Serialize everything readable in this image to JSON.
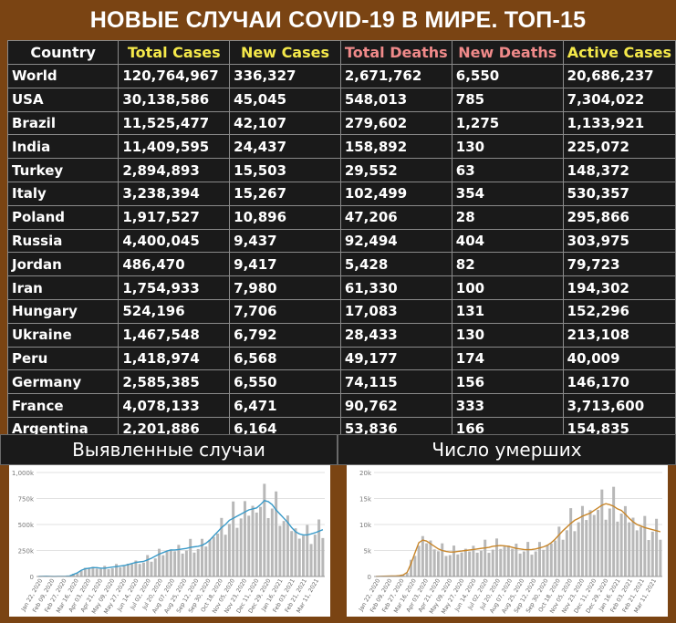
{
  "title": "НОВЫЕ СЛУЧАИ COVID-19 В МИРЕ. ТОП-15",
  "table": {
    "headers": [
      "Country",
      "Total Cases",
      "New Cases",
      "Total Deaths",
      "New Deaths",
      "Active Cases"
    ],
    "header_colors": [
      "#ffffff",
      "#f5e94a",
      "#f5e94a",
      "#f08a8a",
      "#f08a8a",
      "#f5e94a"
    ],
    "rows": [
      [
        "World",
        "120,764,967",
        "336,327",
        "2,671,762",
        "6,550",
        "20,686,237"
      ],
      [
        "USA",
        "30,138,586",
        "45,045",
        "548,013",
        "785",
        "7,304,022"
      ],
      [
        "Brazil",
        "11,525,477",
        "42,107",
        "279,602",
        "1,275",
        "1,133,921"
      ],
      [
        "India",
        "11,409,595",
        "24,437",
        "158,892",
        "130",
        "225,072"
      ],
      [
        "Turkey",
        "2,894,893",
        "15,503",
        "29,552",
        "63",
        "148,372"
      ],
      [
        "Italy",
        "3,238,394",
        "15,267",
        "102,499",
        "354",
        "530,357"
      ],
      [
        "Poland",
        "1,917,527",
        "10,896",
        "47,206",
        "28",
        "295,866"
      ],
      [
        "Russia",
        "4,400,045",
        "9,437",
        "92,494",
        "404",
        "303,975"
      ],
      [
        "Jordan",
        "486,470",
        "9,417",
        "5,428",
        "82",
        "79,723"
      ],
      [
        "Iran",
        "1,754,933",
        "7,980",
        "61,330",
        "100",
        "194,302"
      ],
      [
        "Hungary",
        "524,196",
        "7,706",
        "17,083",
        "131",
        "152,296"
      ],
      [
        "Ukraine",
        "1,467,548",
        "6,792",
        "28,433",
        "130",
        "213,108"
      ],
      [
        "Peru",
        "1,418,974",
        "6,568",
        "49,177",
        "174",
        "40,009"
      ],
      [
        "Germany",
        "2,585,385",
        "6,550",
        "74,115",
        "156",
        "146,170"
      ],
      [
        "France",
        "4,078,133",
        "6,471",
        "90,762",
        "333",
        "3,713,600"
      ],
      [
        "Argentina",
        "2,201,886",
        "6,164",
        "53,836",
        "166",
        "154,835"
      ]
    ]
  },
  "panels": {
    "cases_title": "Выявленные случаи",
    "deaths_title": "Число умерших"
  },
  "chart_data": [
    {
      "type": "bar",
      "title": "Выявленные случаи",
      "xlabel": "",
      "ylabel": "",
      "ylim": [
        0,
        1000000
      ],
      "y_ticks": [
        "0",
        "250k",
        "500k",
        "750k",
        "1,000k"
      ],
      "y_tick_values": [
        0,
        250000,
        500000,
        750000,
        1000000
      ],
      "x_ticks": [
        "Jan 22, 2020",
        "Feb 09, 2020",
        "Feb 27, 2020",
        "Mar 16, 2020",
        "Apr 03, 2020",
        "Apr 21, 2020",
        "May 09, 2020",
        "May 27, 2020",
        "Jun 14, 2020",
        "Jul 02, 2020",
        "Jul 20, 2020",
        "Aug 07, 2020",
        "Aug 25, 2020",
        "Sep 12, 2020",
        "Sep 30, 2020",
        "Oct 18, 2020",
        "Nov 05, 2020",
        "Nov 23, 2020",
        "Dec 11, 2020",
        "Dec 29, 2020",
        "Jan 16, 2021",
        "Feb 03, 2021",
        "Feb 21, 2021",
        "Mar 11, 2021"
      ],
      "bar_color": "#b8b8b8",
      "line_color": "#3a9ac8",
      "series": [
        {
          "name": "",
          "values": [
            500,
            2000,
            2500,
            2000,
            1000,
            1500,
            2000,
            3000,
            5000,
            20000,
            35000,
            60000,
            75000,
            80000,
            85000,
            85000,
            80000,
            80000,
            85000,
            90000,
            95000,
            100000,
            105000,
            115000,
            125000,
            135000,
            140000,
            145000,
            160000,
            175000,
            195000,
            215000,
            230000,
            245000,
            255000,
            255000,
            260000,
            265000,
            270000,
            280000,
            285000,
            290000,
            300000,
            320000,
            350000,
            390000,
            430000,
            470000,
            500000,
            540000,
            560000,
            580000,
            600000,
            620000,
            640000,
            650000,
            660000,
            690000,
            730000,
            720000,
            690000,
            640000,
            600000,
            560000,
            520000,
            470000,
            430000,
            410000,
            400000,
            400000,
            410000,
            420000,
            435000,
            450000
          ]
        }
      ]
    },
    {
      "type": "bar",
      "title": "Число умерших",
      "xlabel": "",
      "ylabel": "",
      "ylim": [
        0,
        20000
      ],
      "y_ticks": [
        "0",
        "5k",
        "10k",
        "15k",
        "20k"
      ],
      "y_tick_values": [
        0,
        5000,
        10000,
        15000,
        20000
      ],
      "x_ticks": [
        "Jan 22, 2020",
        "Feb 09, 2020",
        "Feb 27, 2020",
        "Mar 16, 2020",
        "Apr 03, 2020",
        "Apr 21, 2020",
        "May 09, 2020",
        "May 27, 2020",
        "Jun 14, 2020",
        "Jul 02, 2020",
        "Jul 20, 2020",
        "Aug 07, 2020",
        "Aug 25, 2020",
        "Sep 12, 2020",
        "Sep 30, 2020",
        "Oct 18, 2020",
        "Nov 05, 2020",
        "Nov 23, 2020",
        "Dec 11, 2020",
        "Dec 29, 2020",
        "Jan 16, 2021",
        "Feb 03, 2021",
        "Feb 21, 2021",
        "Mar 11, 2021"
      ],
      "bar_color": "#b8b8b8",
      "line_color": "#c8862a",
      "series": [
        {
          "name": "",
          "values": [
            20,
            40,
            60,
            70,
            80,
            100,
            150,
            300,
            800,
            2500,
            4500,
            6500,
            7000,
            6800,
            6300,
            5800,
            5300,
            5000,
            4800,
            4700,
            4700,
            4800,
            4900,
            5000,
            5100,
            5200,
            5300,
            5400,
            5500,
            5600,
            5800,
            5900,
            5950,
            5900,
            5800,
            5600,
            5400,
            5300,
            5200,
            5150,
            5200,
            5300,
            5500,
            5700,
            6000,
            6500,
            7200,
            8000,
            8800,
            9500,
            10200,
            10800,
            11200,
            11600,
            11900,
            12200,
            12700,
            13200,
            13700,
            14000,
            13800,
            13500,
            13000,
            12700,
            12000,
            11200,
            10500,
            10000,
            9700,
            9400,
            9200,
            9000,
            8800,
            8600
          ]
        }
      ]
    }
  ]
}
